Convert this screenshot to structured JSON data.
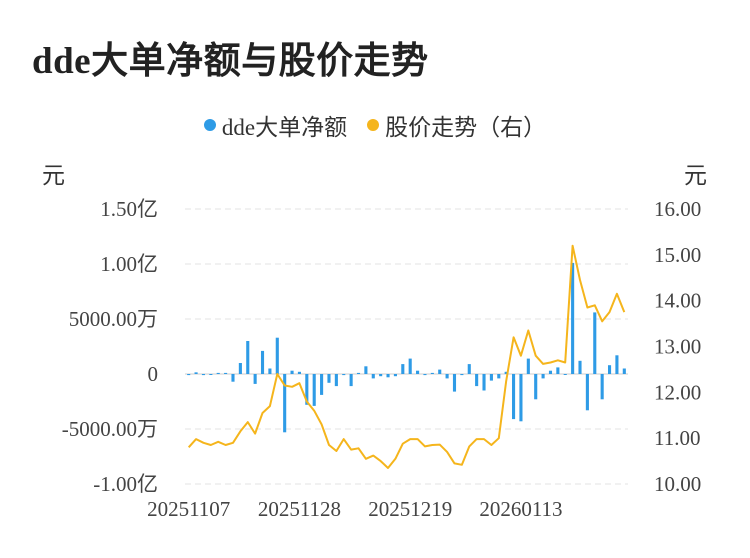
{
  "title": "dde大单净额与股价走势",
  "legend": [
    {
      "label": "dde大单净额",
      "color": "#2e9be6"
    },
    {
      "label": "股价走势（右）",
      "color": "#f5b51c"
    }
  ],
  "chart_data": {
    "type": "bar+line",
    "left_unit": "元",
    "right_unit": "元",
    "left_ticks": [
      "1.50亿",
      "1.00亿",
      "5000.00万",
      "0",
      "-5000.00万",
      "-1.00亿"
    ],
    "right_ticks": [
      "16.00",
      "15.00",
      "14.00",
      "13.00",
      "12.00",
      "11.00",
      "10.00"
    ],
    "x_tick_labels": [
      {
        "index": 0,
        "label": "20251107"
      },
      {
        "index": 15,
        "label": "20251128"
      },
      {
        "index": 30,
        "label": "20251219"
      },
      {
        "index": 45,
        "label": "20260113"
      }
    ],
    "ylim_left": [
      -100000000,
      150000000
    ],
    "ylim_right": [
      10.0,
      16.0
    ],
    "grid": "horizontal dashed",
    "legend_position": "top-center",
    "series": [
      {
        "name": "dde大单净额",
        "type": "bar",
        "color": "#2e9be6",
        "values": [
          -1000000,
          1500000,
          -1000000,
          0,
          1000000,
          1000000,
          -7000000,
          10000000,
          30000000,
          -9000000,
          21000000,
          5000000,
          33000000,
          -53000000,
          3000000,
          2000000,
          -28000000,
          -29000000,
          -19000000,
          -8000000,
          -11000000,
          -1000000,
          -11000000,
          1000000,
          7000000,
          -4000000,
          -2000000,
          -3000000,
          -2000000,
          9000000,
          14000000,
          3000000,
          -1000000,
          1000000,
          4000000,
          -4000000,
          -16000000,
          -1000000,
          9000000,
          -11000000,
          -15000000,
          -6000000,
          -4000000,
          2000000,
          -41000000,
          -43000000,
          14000000,
          -23000000,
          -4000000,
          3000000,
          6000000,
          0,
          101000000,
          12000000,
          -33000000,
          56000000,
          -23000000,
          8000000,
          17000000,
          5000000
        ]
      },
      {
        "name": "股价走势",
        "type": "line",
        "color": "#f5b51c",
        "values": [
          10.8,
          10.98,
          10.9,
          10.85,
          10.92,
          10.85,
          10.9,
          11.15,
          11.35,
          11.1,
          11.55,
          11.7,
          12.4,
          12.15,
          12.12,
          12.2,
          11.8,
          11.6,
          11.3,
          10.85,
          10.72,
          10.98,
          10.75,
          10.78,
          10.55,
          10.62,
          10.5,
          10.35,
          10.55,
          10.88,
          10.98,
          10.98,
          10.82,
          10.85,
          10.86,
          10.7,
          10.45,
          10.42,
          10.82,
          10.98,
          10.98,
          10.85,
          11.0,
          12.25,
          13.2,
          12.8,
          13.35,
          12.8,
          12.62,
          12.65,
          12.7,
          12.65,
          15.2,
          14.45,
          13.85,
          13.9,
          13.55,
          13.75,
          14.15,
          13.75
        ]
      }
    ]
  }
}
